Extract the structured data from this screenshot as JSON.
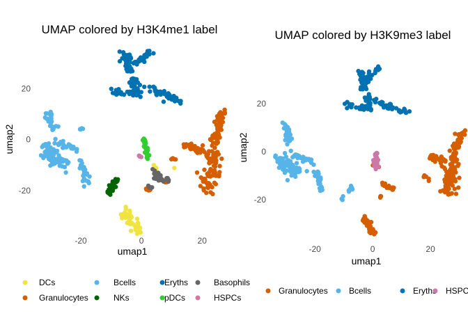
{
  "chart_data": [
    {
      "type": "scatter",
      "title": "UMAP colored by H3K4me1 label",
      "xlabel": "umap1",
      "ylabel": "umap2",
      "xlim": [
        -34,
        28
      ],
      "ylim": [
        -38,
        37
      ],
      "xticks": [
        -20,
        0,
        20
      ],
      "yticks": [
        -20,
        0,
        20
      ],
      "grid": false,
      "legend_position": "bottom",
      "legend": [
        "DCs",
        "Bcells",
        "Eryths",
        "Basophils",
        "Granulocytes",
        "NKs",
        "pDCs",
        "HSPCs"
      ],
      "series": [
        {
          "name": "Eryths",
          "color": "#0072B2",
          "clusters": [
            {
              "type": "segment",
              "from": [
                -5,
                34
              ],
              "to": [
                -4,
                27
              ],
              "n": 40,
              "spread": 1.6
            },
            {
              "type": "segment",
              "from": [
                -4,
                28
              ],
              "to": [
                4,
                35
              ],
              "n": 30,
              "spread": 1.2
            },
            {
              "type": "segment",
              "from": [
                -3,
                25
              ],
              "to": [
                -2,
                19
              ],
              "n": 22,
              "spread": 1.5
            },
            {
              "type": "segment",
              "from": [
                -10,
                19
              ],
              "to": [
                -1,
                18
              ],
              "n": 28,
              "spread": 1.3
            },
            {
              "type": "segment",
              "from": [
                1,
                21
              ],
              "to": [
                13,
                15
              ],
              "n": 38,
              "spread": 1.2
            }
          ]
        },
        {
          "name": "Bcells",
          "color": "#56B4E9",
          "clusters": [
            {
              "type": "segment",
              "from": [
                -31,
                11
              ],
              "to": [
                -29,
                4
              ],
              "n": 25,
              "spread": 1.4
            },
            {
              "type": "segment",
              "from": [
                -32,
                -3
              ],
              "to": [
                -26,
                -10
              ],
              "n": 70,
              "spread": 2.6
            },
            {
              "type": "segment",
              "from": [
                -28,
                -1
              ],
              "to": [
                -22,
                -4
              ],
              "n": 25,
              "spread": 1.3
            },
            {
              "type": "segment",
              "from": [
                -20,
                4
              ],
              "to": [
                -20,
                4
              ],
              "n": 4,
              "spread": 0.6
            },
            {
              "type": "segment",
              "from": [
                -20,
                -8
              ],
              "to": [
                -18,
                -17
              ],
              "n": 28,
              "spread": 1.1
            }
          ]
        },
        {
          "name": "Granulocytes",
          "color": "#D55E00",
          "clusters": [
            {
              "type": "segment",
              "from": [
                27,
                12
              ],
              "to": [
                24,
                -2
              ],
              "n": 50,
              "spread": 1.6
            },
            {
              "type": "segment",
              "from": [
                24,
                -2
              ],
              "to": [
                22,
                -20
              ],
              "n": 80,
              "spread": 3.0
            },
            {
              "type": "segment",
              "from": [
                14,
                -2
              ],
              "to": [
                21,
                -5
              ],
              "n": 30,
              "spread": 1.6
            },
            {
              "type": "segment",
              "from": [
                10,
                -7
              ],
              "to": [
                11,
                -8
              ],
              "n": 4,
              "spread": 0.5
            },
            {
              "type": "segment",
              "from": [
                1,
                -19
              ],
              "to": [
                3,
                -20
              ],
              "n": 6,
              "spread": 0.6
            },
            {
              "type": "segment",
              "from": [
                7,
                -16
              ],
              "to": [
                9,
                -17
              ],
              "n": 5,
              "spread": 0.6
            }
          ]
        },
        {
          "name": "DCs",
          "color": "#F0E442",
          "clusters": [
            {
              "type": "segment",
              "from": [
                -5,
                -28
              ],
              "to": [
                -1,
                -37
              ],
              "n": 55,
              "spread": 1.6
            },
            {
              "type": "segment",
              "from": [
                4,
                -10
              ],
              "to": [
                5,
                -12
              ],
              "n": 3,
              "spread": 0.6
            },
            {
              "type": "segment",
              "from": [
                11,
                -11
              ],
              "to": [
                11,
                -11
              ],
              "n": 1,
              "spread": 0.2
            }
          ]
        },
        {
          "name": "NKs",
          "color": "#006400",
          "clusters": [
            {
              "type": "segment",
              "from": [
                -8,
                -15
              ],
              "to": [
                -11,
                -21
              ],
              "n": 35,
              "spread": 1.0
            }
          ]
        },
        {
          "name": "pDCs",
          "color": "#32CD32",
          "clusters": [
            {
              "type": "segment",
              "from": [
                1,
                0
              ],
              "to": [
                2,
                -7
              ],
              "n": 30,
              "spread": 0.8
            }
          ]
        },
        {
          "name": "Basophils",
          "color": "#666666",
          "clusters": [
            {
              "type": "segment",
              "from": [
                4,
                -12
              ],
              "to": [
                7,
                -17
              ],
              "n": 22,
              "spread": 1.1
            },
            {
              "type": "segment",
              "from": [
                2,
                -18
              ],
              "to": [
                3,
                -19
              ],
              "n": 6,
              "spread": 0.6
            },
            {
              "type": "segment",
              "from": [
                8,
                -15
              ],
              "to": [
                9,
                -16
              ],
              "n": 6,
              "spread": 0.6
            }
          ]
        },
        {
          "name": "HSPCs",
          "color": "#CC79A7",
          "clusters": [
            {
              "type": "segment",
              "from": [
                -1,
                -6
              ],
              "to": [
                0,
                -7
              ],
              "n": 4,
              "spread": 0.5
            }
          ]
        }
      ]
    },
    {
      "type": "scatter",
      "title": "UMAP colored by H3K9me3 label",
      "xlabel": "umap1",
      "ylabel": "umap2",
      "xlim": [
        -35,
        33
      ],
      "ylim": [
        -34,
        40
      ],
      "xticks": [
        -20,
        0,
        20
      ],
      "yticks": [
        -20,
        0,
        20
      ],
      "grid": false,
      "legend_position": "bottom",
      "legend": [
        "Granulocytes",
        "Bcells",
        "Eryths",
        "HSPCs"
      ],
      "series": [
        {
          "name": "Eryths",
          "color": "#0072B2",
          "clusters": [
            {
              "type": "segment",
              "from": [
                -4,
                33
              ],
              "to": [
                -3,
                26
              ],
              "n": 35,
              "spread": 1.5
            },
            {
              "type": "segment",
              "from": [
                -3,
                29
              ],
              "to": [
                2,
                35
              ],
              "n": 20,
              "spread": 1.2
            },
            {
              "type": "segment",
              "from": [
                -2,
                24
              ],
              "to": [
                -1,
                19
              ],
              "n": 18,
              "spread": 1.4
            },
            {
              "type": "segment",
              "from": [
                -9,
                19
              ],
              "to": [
                -1,
                18
              ],
              "n": 25,
              "spread": 1.3
            },
            {
              "type": "segment",
              "from": [
                1,
                21
              ],
              "to": [
                12,
                16
              ],
              "n": 35,
              "spread": 1.3
            }
          ]
        },
        {
          "name": "Bcells",
          "color": "#56B4E9",
          "clusters": [
            {
              "type": "segment",
              "from": [
                -30,
                11
              ],
              "to": [
                -29,
                4
              ],
              "n": 25,
              "spread": 1.4
            },
            {
              "type": "segment",
              "from": [
                -32,
                -3
              ],
              "to": [
                -26,
                -10
              ],
              "n": 70,
              "spread": 2.6
            },
            {
              "type": "segment",
              "from": [
                -28,
                -1
              ],
              "to": [
                -21,
                -4
              ],
              "n": 25,
              "spread": 1.3
            },
            {
              "type": "segment",
              "from": [
                -19,
                -8
              ],
              "to": [
                -18,
                -16
              ],
              "n": 26,
              "spread": 1.1
            },
            {
              "type": "segment",
              "from": [
                -11,
                -20
              ],
              "to": [
                -7,
                -15
              ],
              "n": 12,
              "spread": 0.9
            }
          ]
        },
        {
          "name": "Granulocytes",
          "color": "#D55E00",
          "clusters": [
            {
              "type": "segment",
              "from": [
                31,
                10
              ],
              "to": [
                28,
                -2
              ],
              "n": 50,
              "spread": 1.6
            },
            {
              "type": "segment",
              "from": [
                28,
                -2
              ],
              "to": [
                26,
                -18
              ],
              "n": 80,
              "spread": 3.0
            },
            {
              "type": "segment",
              "from": [
                20,
                -2
              ],
              "to": [
                24,
                -4
              ],
              "n": 20,
              "spread": 1.5
            },
            {
              "type": "segment",
              "from": [
                17,
                -10
              ],
              "to": [
                20,
                -12
              ],
              "n": 6,
              "spread": 0.8
            },
            {
              "type": "segment",
              "from": [
                -3,
                -28
              ],
              "to": [
                0,
                -34
              ],
              "n": 40,
              "spread": 1.5
            },
            {
              "type": "segment",
              "from": [
                5,
                -15
              ],
              "to": [
                8,
                -16
              ],
              "n": 14,
              "spread": 0.9
            },
            {
              "type": "segment",
              "from": [
                3,
                -12
              ],
              "to": [
                4,
                -14
              ],
              "n": 5,
              "spread": 0.6
            },
            {
              "type": "segment",
              "from": [
                2,
                -19
              ],
              "to": [
                3,
                -19
              ],
              "n": 4,
              "spread": 0.5
            },
            {
              "type": "segment",
              "from": [
                0,
                -6
              ],
              "to": [
                2,
                -6
              ],
              "n": 3,
              "spread": 0.4
            }
          ]
        },
        {
          "name": "HSPCs",
          "color": "#CC79A7",
          "clusters": [
            {
              "type": "segment",
              "from": [
                1,
                0
              ],
              "to": [
                1,
                -7
              ],
              "n": 28,
              "spread": 0.8
            }
          ]
        }
      ]
    }
  ]
}
